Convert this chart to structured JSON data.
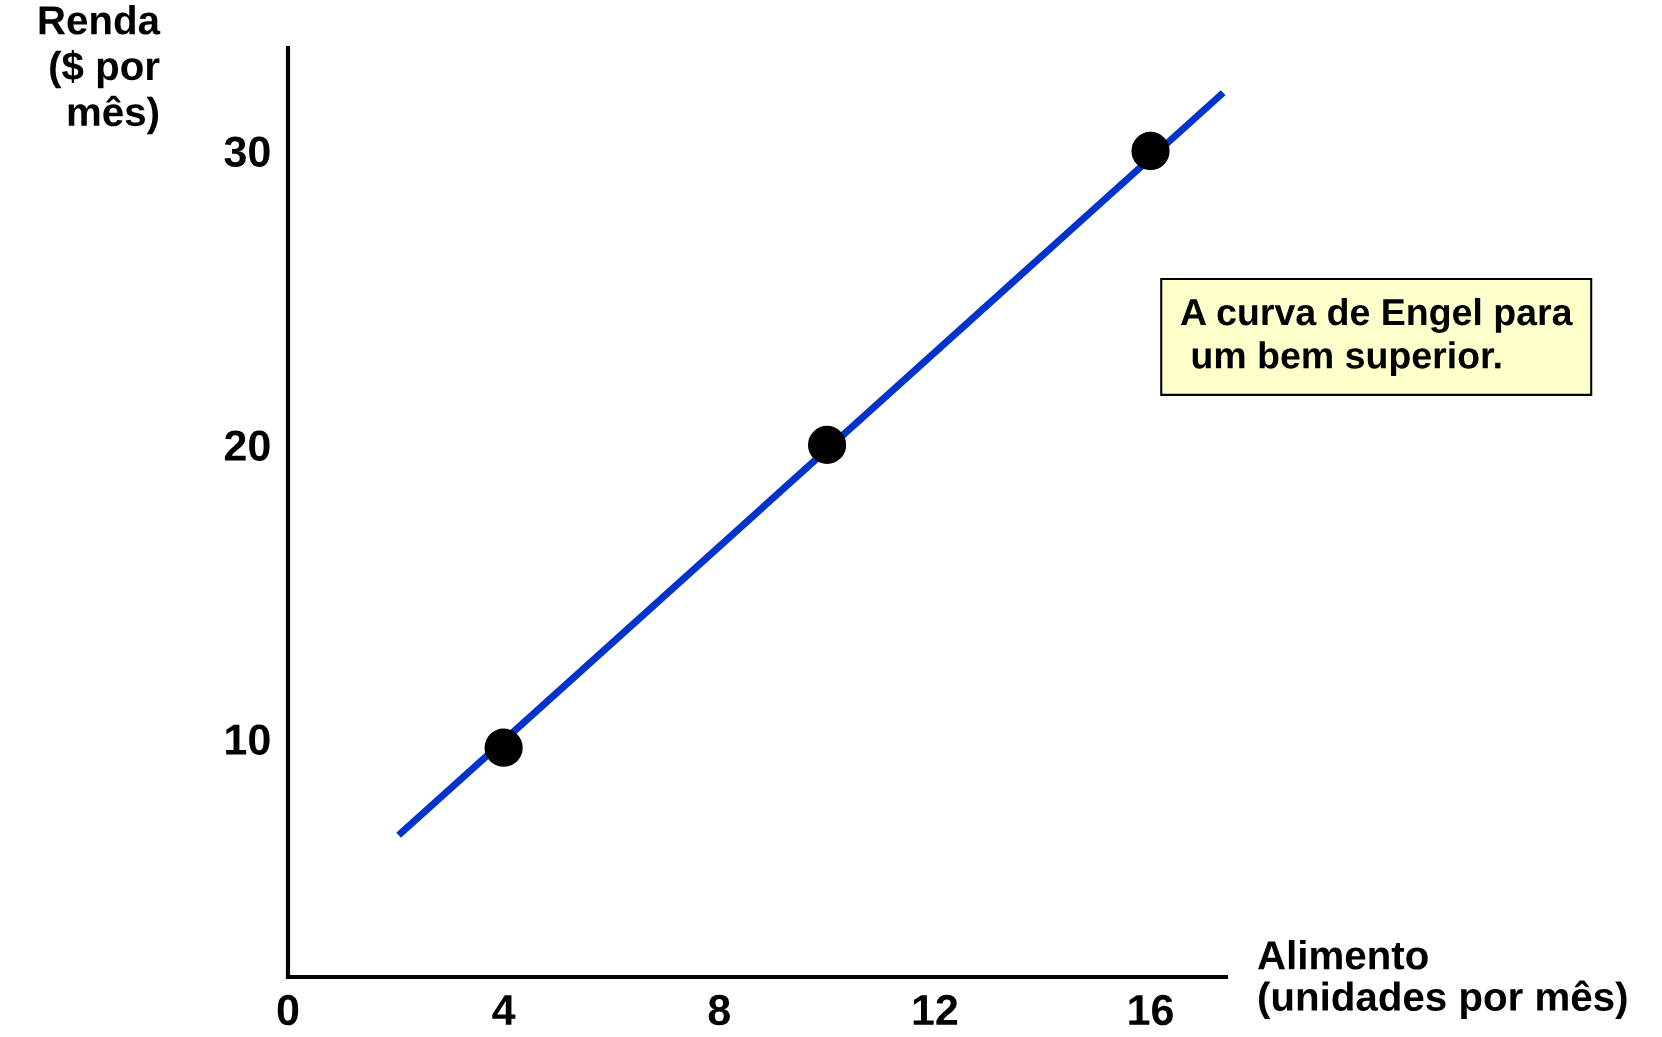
{
  "chart_data": {
    "type": "scatter",
    "ylabel": "Renda\n($ por\nmês)",
    "xlabel": "Alimento\n(unidades por mês)",
    "xlim": [
      0,
      17.4
    ],
    "ylim": [
      1.9,
      33.5
    ],
    "xticks": [
      0,
      4,
      8,
      12,
      16
    ],
    "yticks": [
      10,
      20,
      30
    ],
    "grid": false,
    "legend": false,
    "series": [
      {
        "type": "line",
        "color": "#0033cc",
        "x": [
          2.1,
          17.3
        ],
        "values": [
          6.8,
          31.9
        ],
        "marker": "none"
      },
      {
        "color": "#000000",
        "x": [
          4,
          10,
          16
        ],
        "values": [
          9.7,
          20,
          30
        ],
        "marker": "circle"
      }
    ],
    "annotations": [
      "A curva de Engel para\n um bem superior."
    ]
  }
}
